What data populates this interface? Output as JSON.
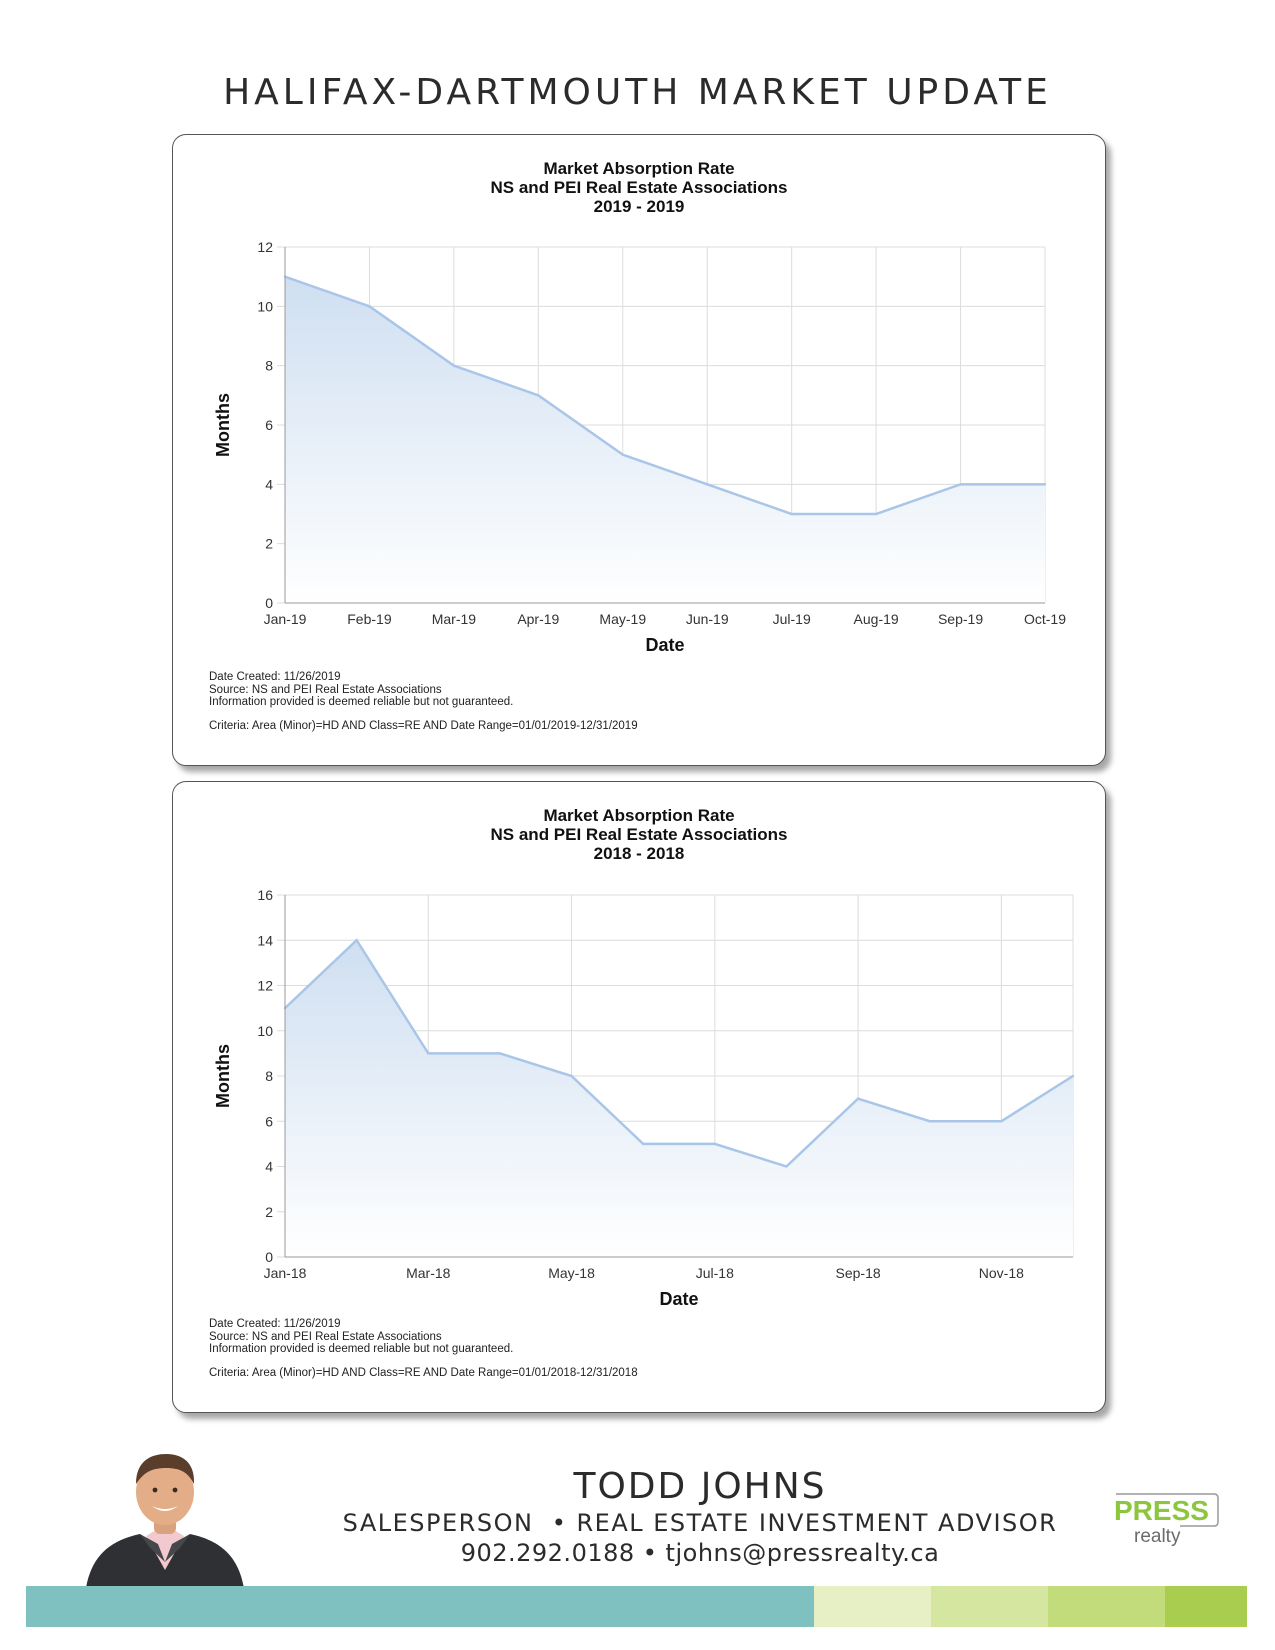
{
  "page": {
    "title": "HALIFAX-DARTMOUTH MARKET UPDATE"
  },
  "chart_data": [
    {
      "type": "area",
      "title": "Market Absorption Rate",
      "subtitle": "NS and PEI Real Estate Associations",
      "subtitle2": "2019 - 2019",
      "xlabel": "Date",
      "ylabel": "Months",
      "x": [
        "Jan-19",
        "Feb-19",
        "Mar-19",
        "Apr-19",
        "May-19",
        "Jun-19",
        "Jul-19",
        "Aug-19",
        "Sep-19",
        "Oct-19"
      ],
      "x_tick_labels": [
        "Jan-19",
        "Feb-19",
        "Mar-19",
        "Apr-19",
        "May-19",
        "Jun-19",
        "Jul-19",
        "Aug-19",
        "Sep-19",
        "Oct-19"
      ],
      "series": [
        {
          "values": [
            11,
            10,
            8,
            7,
            5,
            4,
            3,
            3,
            4,
            4
          ]
        }
      ],
      "ylim": [
        0,
        12
      ],
      "y_ticks": [
        0,
        2,
        4,
        6,
        8,
        10,
        12
      ],
      "grid": true,
      "colors": {
        "line": "#a9c6e8",
        "fill_top": "#cfdff1",
        "fill_bottom": "#ffffff"
      },
      "footer": {
        "date_created": "Date Created: 11/26/2019",
        "source": "Source: NS and PEI Real Estate Associations",
        "disclaimer": "Information provided is deemed reliable but not guaranteed.",
        "criteria": "Criteria: Area (Minor)=HD AND Class=RE AND Date Range=01/01/2019-12/31/2019"
      }
    },
    {
      "type": "area",
      "title": "Market Absorption Rate",
      "subtitle": "NS and PEI Real Estate Associations",
      "subtitle2": "2018 - 2018",
      "xlabel": "Date",
      "ylabel": "Months",
      "x": [
        "Jan-18",
        "Feb-18",
        "Mar-18",
        "Apr-18",
        "May-18",
        "Jun-18",
        "Jul-18",
        "Aug-18",
        "Sep-18",
        "Oct-18",
        "Nov-18",
        "Dec-18"
      ],
      "x_tick_labels": [
        "Jan-18",
        "Mar-18",
        "May-18",
        "Jul-18",
        "Sep-18",
        "Nov-18"
      ],
      "series": [
        {
          "values": [
            11,
            14,
            9,
            9,
            8,
            5,
            5,
            4,
            7,
            6,
            6,
            8
          ]
        }
      ],
      "ylim": [
        0,
        16
      ],
      "y_ticks": [
        0,
        2,
        4,
        6,
        8,
        10,
        12,
        14,
        16
      ],
      "grid": true,
      "colors": {
        "line": "#a9c6e8",
        "fill_top": "#cfdff1",
        "fill_bottom": "#ffffff"
      },
      "footer": {
        "date_created": "Date Created: 11/26/2019",
        "source": "Source: NS and PEI Real Estate Associations",
        "disclaimer": "Information provided is deemed reliable but not guaranteed.",
        "criteria": "Criteria: Area (Minor)=HD AND Class=RE AND Date Range=01/01/2018-12/31/2018"
      }
    }
  ],
  "agent": {
    "name": "TODD JOHNS",
    "role": "SALESPERSON  • REAL ESTATE INVESTMENT ADVISOR",
    "contact": "902.292.0188 • tjohns@pressrealty.ca",
    "photo_icon": "agent-portrait-icon"
  },
  "logo": {
    "word1": "PRESS",
    "word2": "realty",
    "color": "#8cc63f"
  },
  "colors": {
    "teal_bar": "#7fc1c0",
    "green_1": "#e6f0c4",
    "green_2": "#d4e6a0",
    "green_3": "#c2dc7c",
    "green_4": "#a9cd4e"
  }
}
